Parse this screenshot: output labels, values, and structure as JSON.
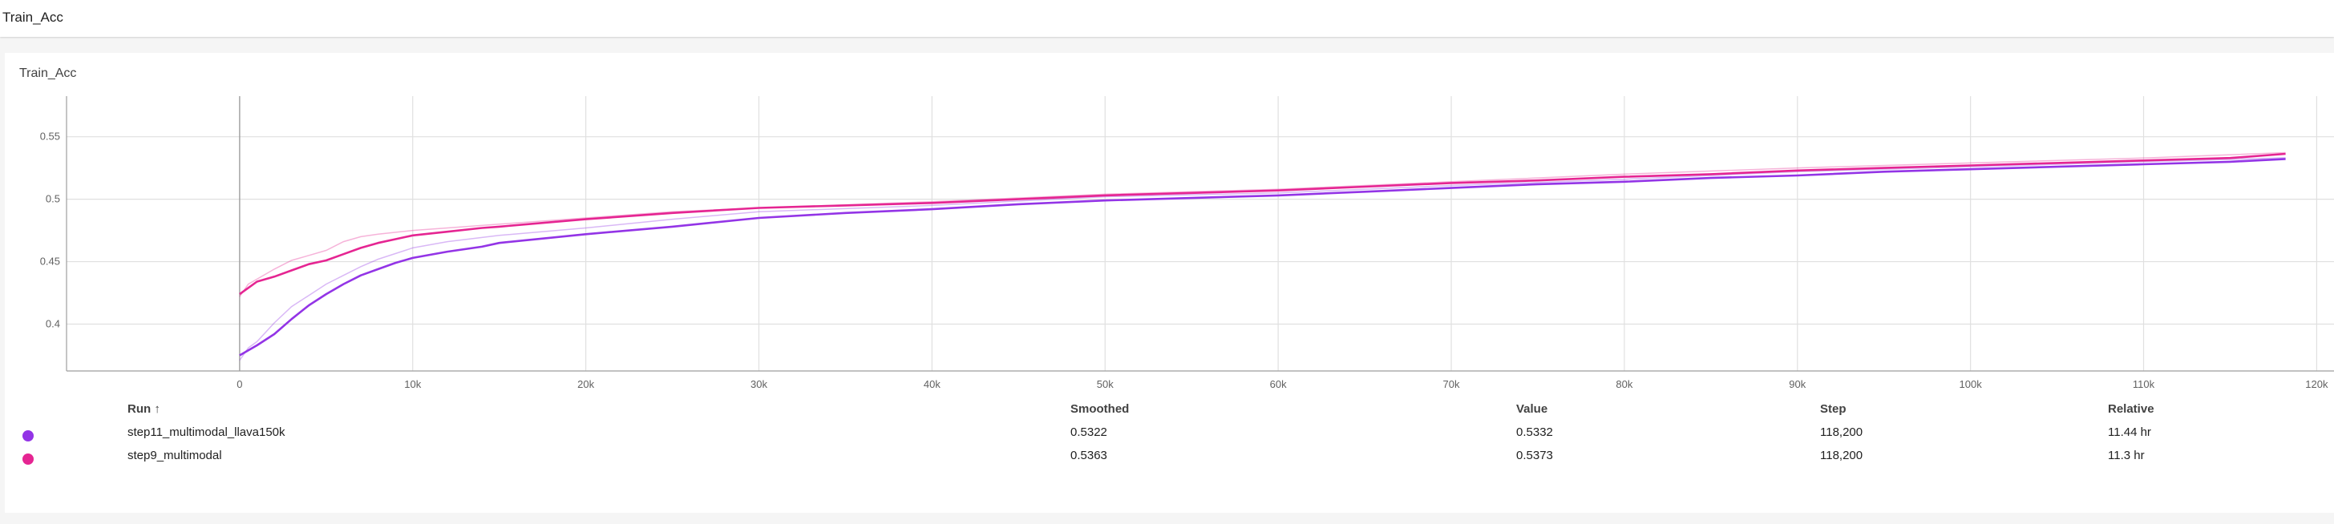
{
  "header": {
    "title": "Train_Acc"
  },
  "card": {
    "title": "Train_Acc"
  },
  "chart_data": {
    "type": "line",
    "title": "Train_Acc",
    "xlim": [
      -10000,
      121000
    ],
    "ylim": [
      0.3625,
      0.5825
    ],
    "x_ticks": [
      0,
      10000,
      20000,
      30000,
      40000,
      50000,
      60000,
      70000,
      80000,
      90000,
      100000,
      110000,
      120000
    ],
    "x_tick_labels": [
      "0",
      "10k",
      "20k",
      "30k",
      "40k",
      "50k",
      "60k",
      "70k",
      "80k",
      "90k",
      "100k",
      "110k",
      "120k"
    ],
    "y_ticks": [
      0.4,
      0.45,
      0.5,
      0.55
    ],
    "y_tick_labels": [
      "0.4",
      "0.45",
      "0.5",
      "0.55"
    ],
    "grid": true,
    "series": [
      {
        "name": "step11_multimodal_llava150k",
        "color": "#9334e6",
        "raw_x": [
          0,
          500,
          1000,
          2000,
          3000,
          4000,
          5000,
          6000,
          7000,
          8000,
          10000,
          12000,
          15000,
          20000,
          25000,
          30000,
          40000,
          50000,
          60000,
          70000,
          80000,
          90000,
          100000,
          110000,
          118200
        ],
        "raw_y": [
          0.371,
          0.381,
          0.386,
          0.401,
          0.414,
          0.423,
          0.432,
          0.439,
          0.446,
          0.452,
          0.461,
          0.466,
          0.471,
          0.477,
          0.484,
          0.49,
          0.495,
          0.502,
          0.505,
          0.511,
          0.516,
          0.522,
          0.526,
          0.53,
          0.5332
        ],
        "smoothed_x": [
          0,
          500,
          1000,
          2000,
          3000,
          4000,
          5000,
          6000,
          7000,
          8000,
          9000,
          10000,
          12000,
          14000,
          15000,
          20000,
          25000,
          30000,
          35000,
          40000,
          45000,
          50000,
          55000,
          60000,
          65000,
          70000,
          75000,
          80000,
          85000,
          90000,
          95000,
          100000,
          105000,
          110000,
          115000,
          118200
        ],
        "smoothed_y": [
          0.375,
          0.379,
          0.383,
          0.392,
          0.404,
          0.415,
          0.424,
          0.432,
          0.439,
          0.444,
          0.449,
          0.453,
          0.458,
          0.462,
          0.465,
          0.472,
          0.478,
          0.485,
          0.489,
          0.492,
          0.496,
          0.499,
          0.501,
          0.503,
          0.506,
          0.509,
          0.512,
          0.514,
          0.517,
          0.519,
          0.522,
          0.524,
          0.526,
          0.528,
          0.53,
          0.5322
        ]
      },
      {
        "name": "step9_multimodal",
        "color": "#e52592",
        "raw_x": [
          0,
          500,
          1000,
          2000,
          3000,
          4000,
          5000,
          6000,
          7000,
          8000,
          10000,
          12000,
          15000,
          20000,
          25000,
          30000,
          40000,
          50000,
          60000,
          70000,
          80000,
          90000,
          100000,
          110000,
          118200
        ],
        "raw_y": [
          0.422,
          0.432,
          0.436,
          0.444,
          0.451,
          0.455,
          0.459,
          0.466,
          0.47,
          0.472,
          0.475,
          0.477,
          0.48,
          0.485,
          0.49,
          0.493,
          0.498,
          0.504,
          0.508,
          0.514,
          0.52,
          0.525,
          0.529,
          0.533,
          0.5373
        ],
        "smoothed_x": [
          0,
          500,
          1000,
          2000,
          3000,
          4000,
          5000,
          6000,
          7000,
          8000,
          9000,
          10000,
          12000,
          14000,
          15000,
          20000,
          25000,
          30000,
          35000,
          40000,
          45000,
          50000,
          55000,
          60000,
          65000,
          70000,
          75000,
          80000,
          85000,
          90000,
          95000,
          100000,
          105000,
          110000,
          115000,
          118200
        ],
        "smoothed_y": [
          0.424,
          0.429,
          0.434,
          0.438,
          0.443,
          0.448,
          0.451,
          0.456,
          0.461,
          0.465,
          0.468,
          0.471,
          0.474,
          0.477,
          0.478,
          0.484,
          0.489,
          0.493,
          0.495,
          0.497,
          0.5,
          0.503,
          0.505,
          0.507,
          0.51,
          0.513,
          0.515,
          0.518,
          0.52,
          0.523,
          0.525,
          0.527,
          0.529,
          0.531,
          0.533,
          0.5363
        ]
      }
    ]
  },
  "table": {
    "headers": {
      "run": "Run ↑",
      "smoothed": "Smoothed",
      "value": "Value",
      "step": "Step",
      "relative": "Relative"
    },
    "rows": [
      {
        "run": "step11_multimodal_llava150k",
        "color": "#9334e6",
        "smoothed": "0.5322",
        "value": "0.5332",
        "step": "118,200",
        "relative": "11.44 hr"
      },
      {
        "run": "step9_multimodal",
        "color": "#e52592",
        "smoothed": "0.5363",
        "value": "0.5373",
        "step": "118,200",
        "relative": "11.3 hr"
      }
    ]
  }
}
